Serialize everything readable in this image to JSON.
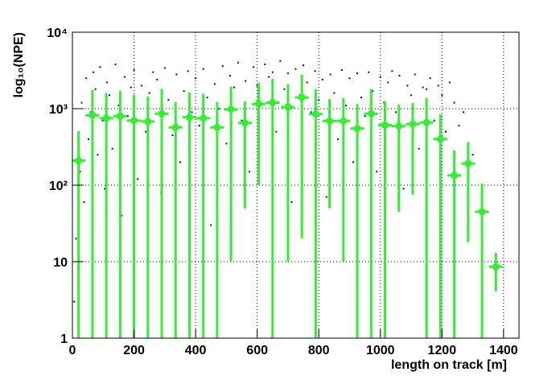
{
  "chart_data": {
    "type": "scatter-profile",
    "xlabel": "length on track [m]",
    "ylabel": "log₁₀(NPE)",
    "xlim": [
      0,
      1450
    ],
    "ylim": [
      1,
      10000
    ],
    "log_y": true,
    "grid": true,
    "xticks": [
      0,
      200,
      400,
      600,
      800,
      1000,
      1200,
      1400
    ],
    "yticks": [
      1,
      10,
      {
        "value": 100,
        "label": "10²"
      },
      {
        "value": 1000,
        "label": "10³"
      },
      {
        "value": 10000,
        "label": "10⁴"
      }
    ],
    "scatter": {
      "color": "#0000cc",
      "x": [
        5,
        12,
        18,
        25,
        30,
        38,
        45,
        52,
        60,
        68,
        75,
        82,
        90,
        98,
        105,
        112,
        120,
        130,
        140,
        150,
        160,
        170,
        180,
        190,
        200,
        212,
        225,
        238,
        250,
        262,
        275,
        288,
        300,
        312,
        325,
        338,
        350,
        362,
        375,
        388,
        400,
        412,
        425,
        438,
        450,
        462,
        475,
        488,
        500,
        512,
        525,
        538,
        550,
        562,
        575,
        588,
        600,
        612,
        625,
        638,
        650,
        662,
        675,
        688,
        700,
        712,
        725,
        738,
        750,
        762,
        775,
        788,
        800,
        812,
        825,
        838,
        850,
        862,
        875,
        888,
        900,
        912,
        925,
        938,
        950,
        962,
        975,
        988,
        1000,
        1012,
        1025,
        1038,
        1050,
        1062,
        1075,
        1088,
        1100,
        1112,
        1125,
        1138,
        1150,
        1162,
        1175,
        1188,
        1200,
        1212,
        1225,
        1240,
        1255,
        1270,
        1285,
        1300
      ],
      "y": [
        3,
        20,
        8,
        150,
        1200,
        60,
        2500,
        400,
        900,
        3000,
        1800,
        250,
        3500,
        700,
        90,
        2200,
        1500,
        300,
        3800,
        1100,
        40,
        2600,
        800,
        1900,
        3200,
        120,
        2000,
        500,
        1600,
        3000,
        2400,
        80,
        3400,
        1300,
        450,
        2800,
        200,
        1700,
        3100,
        900,
        2500,
        600,
        3300,
        1400,
        30,
        2100,
        1000,
        3600,
        350,
        2700,
        1900,
        4000,
        700,
        2300,
        150,
        3500,
        2000,
        1200,
        3800,
        2600,
        3000,
        500,
        4200,
        1800,
        2900,
        60,
        3300,
        1500,
        3700,
        2200,
        900,
        3100,
        1300,
        2400,
        70,
        2800,
        1600,
        400,
        3200,
        1100,
        2500,
        200,
        2900,
        1400,
        800,
        3000,
        1700,
        150,
        2600,
        1200,
        2200,
        3100,
        900,
        2700,
        90,
        2000,
        1500,
        2800,
        300,
        1900,
        1800,
        2500,
        700,
        2000,
        1500,
        500,
        2200,
        1200,
        600,
        900,
        300,
        250
      ]
    },
    "profile": {
      "color": "#33ee33",
      "xerr": 22.5,
      "x": [
        20,
        65,
        110,
        155,
        200,
        245,
        290,
        335,
        380,
        425,
        470,
        515,
        560,
        605,
        650,
        700,
        745,
        790,
        835,
        880,
        925,
        970,
        1015,
        1060,
        1105,
        1150,
        1195,
        1240,
        1285,
        1330,
        1375
      ],
      "values": [
        210,
        820,
        750,
        800,
        700,
        680,
        860,
        570,
        770,
        750,
        570,
        980,
        650,
        1150,
        1200,
        1050,
        1400,
        850,
        690,
        690,
        550,
        860,
        610,
        590,
        630,
        660,
        400,
        134,
        192,
        45,
        8.6
      ],
      "errors": [
        300,
        950,
        850,
        900,
        800,
        760,
        950,
        650,
        850,
        820,
        650,
        970,
        600,
        1050,
        1250,
        1040,
        1380,
        950,
        640,
        680,
        600,
        950,
        650,
        545,
        555,
        720,
        450,
        150,
        174,
        60,
        4.5
      ]
    }
  }
}
